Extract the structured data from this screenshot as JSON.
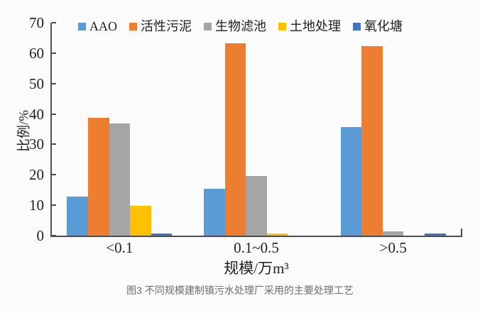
{
  "caption": "图3 不同规模建制镇污水处理厂采用的主要处理工艺",
  "chart_data": {
    "type": "bar",
    "title": "",
    "categories": [
      "<0.1",
      "0.1~0.5",
      ">0.5"
    ],
    "series": [
      {
        "name": "AAO",
        "color": "#5B9BD5",
        "values": [
          12.8,
          15.3,
          35.8
        ]
      },
      {
        "name": "活性污泥",
        "color": "#ED7D31",
        "values": [
          38.7,
          63.3,
          62.4
        ]
      },
      {
        "name": "生物滤池",
        "color": "#A5A5A5",
        "values": [
          36.9,
          19.7,
          1.3
        ]
      },
      {
        "name": "土地处理",
        "color": "#FFC000",
        "values": [
          9.7,
          0.7,
          0
        ]
      },
      {
        "name": "氧化塘",
        "color": "#4472C4",
        "values": [
          0.6,
          0,
          0.8
        ]
      }
    ],
    "xlabel": "规模/万m³",
    "ylabel": "比例/%",
    "ylim": [
      0,
      70
    ],
    "ytick_step": 10,
    "grid": false,
    "legend_position": "top-inside",
    "axis_color": "#4d4d4d"
  }
}
